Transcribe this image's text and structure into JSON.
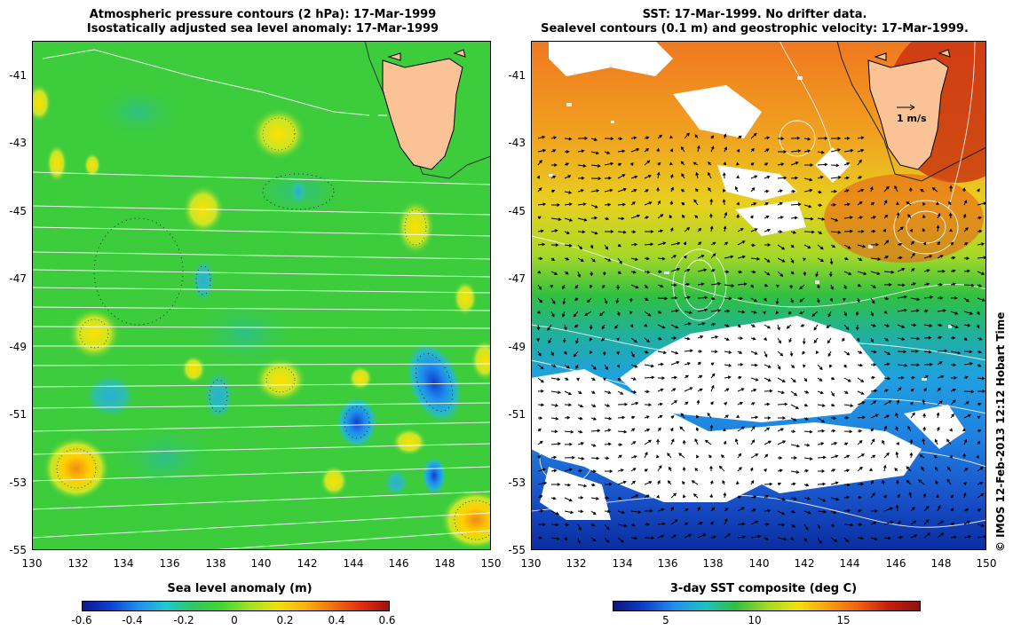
{
  "left": {
    "title_line1": "Atmospheric pressure contours (2 hPa): 17-Mar-1999",
    "title_line2": "Isostatically adjusted sea level anomaly: 17-Mar-1999",
    "colorbar_label": "Sea level anomaly (m)",
    "colorbar_ticks": [
      "-0.6",
      "-0.4",
      "-0.2",
      "0",
      "0.2",
      "0.4",
      "0.6"
    ]
  },
  "right": {
    "title_line1": "SST: 17-Mar-1999. No drifter data.",
    "title_line2": "Sealevel contours (0.1 m) and geostrophic velocity: 17-Mar-1999.",
    "colorbar_label": "3-day SST composite (deg C)",
    "colorbar_ticks": [
      "5",
      "10",
      "15"
    ],
    "scale_arrow_label": "1 m/s"
  },
  "axes": {
    "y_ticks": [
      "-41",
      "-43",
      "-45",
      "-47",
      "-49",
      "-51",
      "-53",
      "-55"
    ],
    "x_ticks": [
      "130",
      "132",
      "134",
      "136",
      "138",
      "140",
      "142",
      "144",
      "146",
      "148",
      "150"
    ]
  },
  "credit": "© IMOS 12-Feb-2013 12:12 Hobart Time",
  "colors": {
    "land": "#f9c396",
    "sla_background": "#3ccc3c",
    "sst_warm": "#e8781c",
    "sst_cold": "#1450c8"
  }
}
